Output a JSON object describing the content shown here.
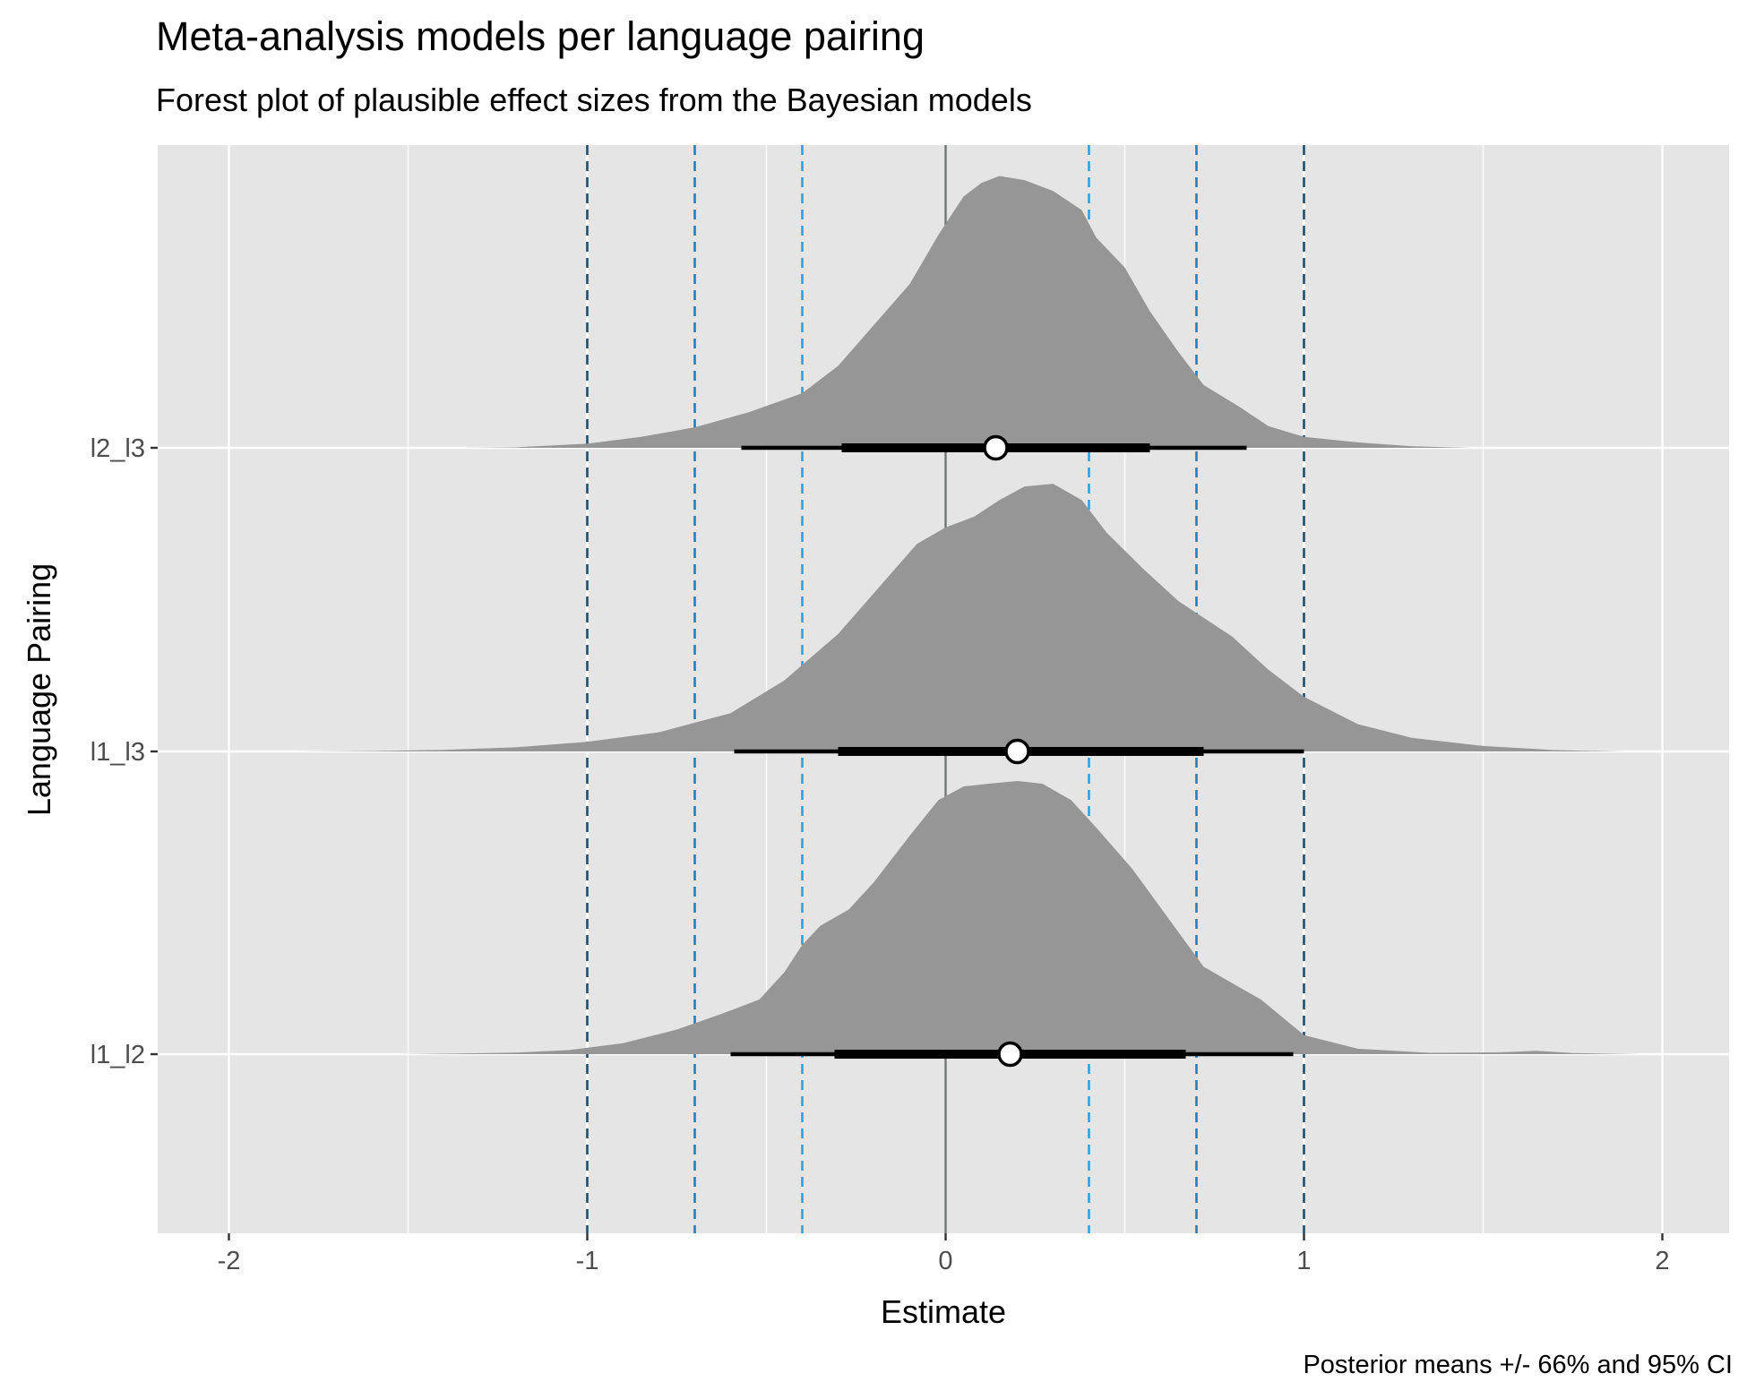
{
  "title": "Meta-analysis models per language pairing",
  "subtitle": "Forest plot of plausible effect sizes from the Bayesian models",
  "caption": "Posterior means +/- 66% and 95% CI",
  "chart_data": {
    "type": "forest",
    "xlabel": "Estimate",
    "ylabel": "Language Pairing",
    "xlim": [
      -2.2,
      2.2
    ],
    "x_ticks": [
      "-2",
      "-1",
      "0",
      "1",
      "2"
    ],
    "categories": [
      "l1_l2",
      "l1_l3",
      "l2_l3"
    ],
    "grid": true,
    "colors": {
      "panel": "#e5e5e5",
      "density": "#969696",
      "zero_line": "#6e7373",
      "ref_dark": "#1e4d6e",
      "ref_mid": "#1f7fbf",
      "ref_light": "#2aa2e8"
    },
    "reference_lines": [
      {
        "x": -1.0,
        "style": "dark"
      },
      {
        "x": 1.0,
        "style": "dark"
      },
      {
        "x": -0.7,
        "style": "mid"
      },
      {
        "x": 0.7,
        "style": "mid"
      },
      {
        "x": -0.4,
        "style": "light"
      },
      {
        "x": 0.4,
        "style": "light"
      }
    ],
    "zero_line": 0,
    "series": [
      {
        "name": "l1_l2",
        "mean": 0.18,
        "ci66": [
          -0.31,
          0.67
        ],
        "ci95": [
          -0.6,
          0.97
        ],
        "density": [
          [
            -1.53,
            0.0
          ],
          [
            -1.4,
            0.002
          ],
          [
            -1.2,
            0.006
          ],
          [
            -1.05,
            0.015
          ],
          [
            -0.9,
            0.04
          ],
          [
            -0.75,
            0.09
          ],
          [
            -0.62,
            0.15
          ],
          [
            -0.52,
            0.2
          ],
          [
            -0.45,
            0.3
          ],
          [
            -0.4,
            0.4
          ],
          [
            -0.35,
            0.47
          ],
          [
            -0.27,
            0.53
          ],
          [
            -0.2,
            0.63
          ],
          [
            -0.1,
            0.8
          ],
          [
            -0.02,
            0.93
          ],
          [
            0.05,
            0.98
          ],
          [
            0.12,
            0.99
          ],
          [
            0.2,
            1.0
          ],
          [
            0.27,
            0.99
          ],
          [
            0.35,
            0.93
          ],
          [
            0.42,
            0.83
          ],
          [
            0.52,
            0.68
          ],
          [
            0.62,
            0.5
          ],
          [
            0.72,
            0.32
          ],
          [
            0.8,
            0.26
          ],
          [
            0.88,
            0.2
          ],
          [
            1.0,
            0.07
          ],
          [
            1.15,
            0.02
          ],
          [
            1.35,
            0.005
          ],
          [
            1.55,
            0.007
          ],
          [
            1.65,
            0.012
          ],
          [
            1.75,
            0.004
          ],
          [
            1.94,
            0.0
          ]
        ]
      },
      {
        "name": "l1_l3",
        "mean": 0.2,
        "ci66": [
          -0.3,
          0.72
        ],
        "ci95": [
          -0.59,
          1.0
        ],
        "density": [
          [
            -1.82,
            0.0
          ],
          [
            -1.6,
            0.002
          ],
          [
            -1.4,
            0.006
          ],
          [
            -1.2,
            0.015
          ],
          [
            -1.0,
            0.035
          ],
          [
            -0.8,
            0.07
          ],
          [
            -0.6,
            0.14
          ],
          [
            -0.45,
            0.26
          ],
          [
            -0.3,
            0.43
          ],
          [
            -0.18,
            0.61
          ],
          [
            -0.08,
            0.76
          ],
          [
            0.0,
            0.82
          ],
          [
            0.08,
            0.86
          ],
          [
            0.15,
            0.92
          ],
          [
            0.22,
            0.97
          ],
          [
            0.3,
            0.98
          ],
          [
            0.38,
            0.92
          ],
          [
            0.45,
            0.8
          ],
          [
            0.55,
            0.67
          ],
          [
            0.65,
            0.55
          ],
          [
            0.8,
            0.42
          ],
          [
            0.9,
            0.3
          ],
          [
            1.0,
            0.2
          ],
          [
            1.15,
            0.1
          ],
          [
            1.3,
            0.05
          ],
          [
            1.5,
            0.02
          ],
          [
            1.7,
            0.005
          ],
          [
            1.9,
            0.0
          ]
        ]
      },
      {
        "name": "l2_l3",
        "mean": 0.14,
        "ci66": [
          -0.29,
          0.57
        ],
        "ci95": [
          -0.57,
          0.84
        ],
        "density": [
          [
            -1.35,
            0.0
          ],
          [
            -1.2,
            0.002
          ],
          [
            -1.0,
            0.015
          ],
          [
            -0.85,
            0.04
          ],
          [
            -0.7,
            0.075
          ],
          [
            -0.55,
            0.13
          ],
          [
            -0.4,
            0.2
          ],
          [
            -0.3,
            0.3
          ],
          [
            -0.2,
            0.45
          ],
          [
            -0.1,
            0.6
          ],
          [
            -0.02,
            0.78
          ],
          [
            0.05,
            0.92
          ],
          [
            0.1,
            0.97
          ],
          [
            0.15,
            0.995
          ],
          [
            0.22,
            0.98
          ],
          [
            0.3,
            0.94
          ],
          [
            0.38,
            0.87
          ],
          [
            0.42,
            0.77
          ],
          [
            0.5,
            0.66
          ],
          [
            0.57,
            0.5
          ],
          [
            0.65,
            0.35
          ],
          [
            0.72,
            0.23
          ],
          [
            0.82,
            0.15
          ],
          [
            0.9,
            0.08
          ],
          [
            1.0,
            0.04
          ],
          [
            1.15,
            0.02
          ],
          [
            1.3,
            0.006
          ],
          [
            1.47,
            0.0
          ]
        ]
      }
    ]
  }
}
